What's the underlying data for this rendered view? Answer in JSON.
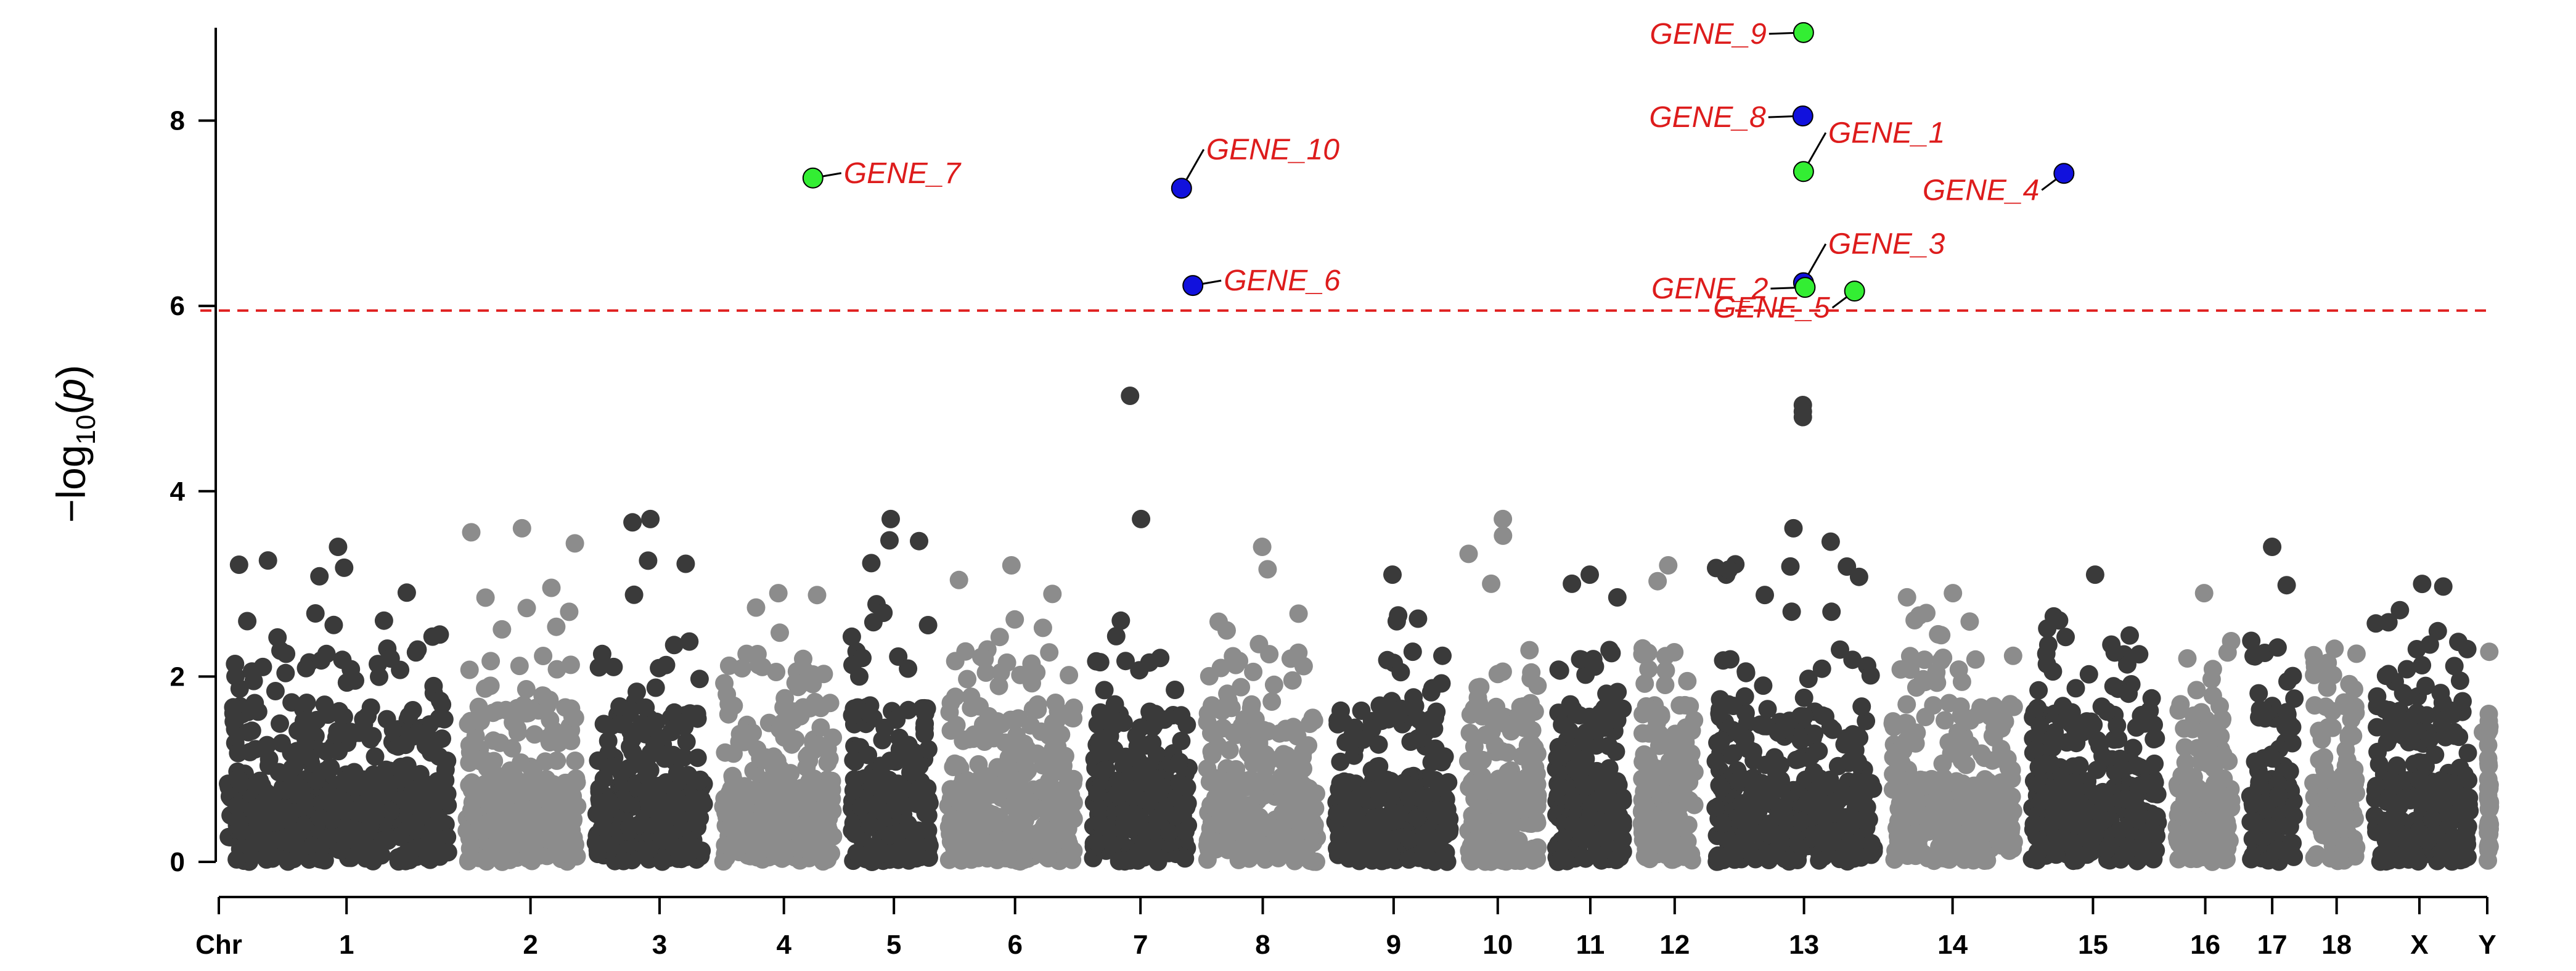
{
  "chart_data": {
    "type": "scatter",
    "subtype": "manhattan",
    "title": "",
    "xlabel": "Chr",
    "ylabel": "-log10(p)",
    "ylabel_parts": {
      "prefix": "−log",
      "subscript": "10",
      "open": "(",
      "var": "p",
      "close": ")"
    },
    "ylim": [
      0,
      9
    ],
    "yticks": [
      0,
      2,
      4,
      6,
      8
    ],
    "threshold": 5.95,
    "threshold_color": "#e02020",
    "colors": {
      "dark": "#3a3a3a",
      "light": "#8c8c8c",
      "highlight_green": "#33ee33",
      "highlight_blue": "#1111dd",
      "label": "#dd1c1c"
    },
    "chromosomes": [
      {
        "name": "1",
        "start": 0.0,
        "end": 0.1051,
        "ymax": 3.4,
        "color": "dark"
      },
      {
        "name": "2",
        "start": 0.1051,
        "end": 0.1622,
        "ymax": 3.6,
        "color": "light"
      },
      {
        "name": "3",
        "start": 0.1622,
        "end": 0.2183,
        "ymax": 3.7,
        "color": "dark"
      },
      {
        "name": "4",
        "start": 0.2183,
        "end": 0.275,
        "ymax": 2.9,
        "color": "light"
      },
      {
        "name": "5",
        "start": 0.275,
        "end": 0.3174,
        "ymax": 3.7,
        "color": "dark"
      },
      {
        "name": "6",
        "start": 0.3174,
        "end": 0.3814,
        "ymax": 3.2,
        "color": "light"
      },
      {
        "name": "7",
        "start": 0.3814,
        "end": 0.4317,
        "ymax": 3.7,
        "color": "dark"
      },
      {
        "name": "8",
        "start": 0.4317,
        "end": 0.4882,
        "ymax": 3.4,
        "color": "light"
      },
      {
        "name": "9",
        "start": 0.4882,
        "end": 0.5466,
        "ymax": 3.1,
        "color": "dark"
      },
      {
        "name": "10",
        "start": 0.5466,
        "end": 0.5855,
        "ymax": 3.7,
        "color": "light"
      },
      {
        "name": "11",
        "start": 0.5855,
        "end": 0.6232,
        "ymax": 3.1,
        "color": "dark"
      },
      {
        "name": "12",
        "start": 0.6232,
        "end": 0.6547,
        "ymax": 3.2,
        "color": "light"
      },
      {
        "name": "13",
        "start": 0.6547,
        "end": 0.7336,
        "ymax": 3.6,
        "color": "dark"
      },
      {
        "name": "14",
        "start": 0.7336,
        "end": 0.7953,
        "ymax": 2.9,
        "color": "light"
      },
      {
        "name": "15",
        "start": 0.7953,
        "end": 0.859,
        "ymax": 3.1,
        "color": "dark"
      },
      {
        "name": "16",
        "start": 0.859,
        "end": 0.8914,
        "ymax": 2.9,
        "color": "light"
      },
      {
        "name": "17",
        "start": 0.8914,
        "end": 0.919,
        "ymax": 3.4,
        "color": "dark"
      },
      {
        "name": "18",
        "start": 0.919,
        "end": 0.9464,
        "ymax": 2.3,
        "color": "light"
      },
      {
        "name": "X",
        "start": 0.9464,
        "end": 0.9962,
        "ymax": 3.0,
        "color": "dark"
      },
      {
        "name": "Y",
        "start": 0.9962,
        "end": 1.0,
        "ymax": 1.4,
        "color": "light"
      }
    ],
    "chrom_label_positions": [
      0.0563,
      0.1374,
      0.1943,
      0.2491,
      0.2976,
      0.351,
      0.4063,
      0.4602,
      0.5179,
      0.5638,
      0.6046,
      0.6418,
      0.6988,
      0.7643,
      0.8262,
      0.8757,
      0.9052,
      0.9336,
      0.9701,
      1.0
    ],
    "tick_label_prefix": "Chr",
    "highlights": [
      {
        "gene": "GENE_9",
        "x": 0.6986,
        "y": 8.95,
        "color": "green",
        "label_side": "left"
      },
      {
        "gene": "GENE_8",
        "x": 0.6983,
        "y": 8.05,
        "color": "blue",
        "label_side": "left"
      },
      {
        "gene": "GENE_1",
        "x": 0.6986,
        "y": 7.45,
        "color": "green",
        "label_side": "right-up"
      },
      {
        "gene": "GENE_4",
        "x": 0.8134,
        "y": 7.43,
        "color": "blue",
        "label_side": "left-down"
      },
      {
        "gene": "GENE_7",
        "x": 0.2619,
        "y": 7.38,
        "color": "green",
        "label_side": "right"
      },
      {
        "gene": "GENE_10",
        "x": 0.4244,
        "y": 7.27,
        "color": "blue",
        "label_side": "right-up"
      },
      {
        "gene": "GENE_6",
        "x": 0.4294,
        "y": 6.22,
        "color": "blue",
        "label_side": "right"
      },
      {
        "gene": "GENE_3",
        "x": 0.6986,
        "y": 6.25,
        "color": "blue",
        "label_side": "right-up"
      },
      {
        "gene": "GENE_2",
        "x": 0.6993,
        "y": 6.2,
        "color": "green",
        "label_side": "left"
      },
      {
        "gene": "GENE_5",
        "x": 0.7211,
        "y": 6.16,
        "color": "green",
        "label_side": "left-down"
      }
    ],
    "notable_points": [
      {
        "x": 0.4017,
        "y": 5.03
      },
      {
        "x": 0.6983,
        "y": 4.93
      },
      {
        "x": 0.6983,
        "y": 4.86
      },
      {
        "x": 0.6983,
        "y": 4.8
      }
    ]
  }
}
